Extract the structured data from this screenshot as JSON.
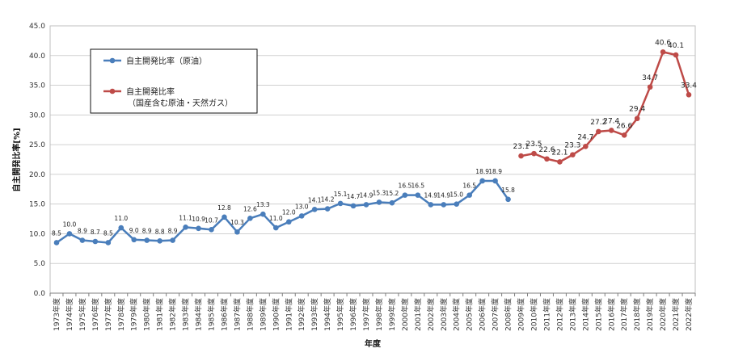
{
  "chart_data": {
    "type": "line",
    "xlabel": "年度",
    "ylabel": "自主開発比率[%]",
    "ylim": [
      0,
      45
    ],
    "yticks": [
      "0.0",
      "5.0",
      "10.0",
      "15.0",
      "20.0",
      "25.0",
      "30.0",
      "35.0",
      "40.0",
      "45.0"
    ],
    "grid": true,
    "legend_position": "top-left",
    "categories": [
      "1973年度",
      "1974年度",
      "1975年度",
      "1976年度",
      "1977年度",
      "1978年度",
      "1979年度",
      "1980年度",
      "1981年度",
      "1982年度",
      "1983年度",
      "1984年度",
      "1985年度",
      "1986年度",
      "1987年度",
      "1988年度",
      "1989年度",
      "1990年度",
      "1991年度",
      "1992年度",
      "1993年度",
      "1994年度",
      "1995年度",
      "1996年度",
      "1997年度",
      "1998年度",
      "1999年度",
      "2000年度",
      "2001年度",
      "2002年度",
      "2003年度",
      "2004年度",
      "2005年度",
      "2006年度",
      "2007年度",
      "2008年度",
      "2009年度",
      "2010年度",
      "2011年度",
      "2012年度",
      "2013年度",
      "2014年度",
      "2015年度",
      "2016年度",
      "2017年度",
      "2018年度",
      "2019年度",
      "2020年度",
      "2021年度",
      "2022年度"
    ],
    "series": [
      {
        "name": "自主開発比率（原油）",
        "color": "#4a7ebb",
        "values": [
          8.5,
          10.0,
          8.9,
          8.7,
          8.5,
          11.0,
          9.0,
          8.9,
          8.8,
          8.9,
          11.1,
          10.9,
          10.7,
          12.8,
          10.3,
          12.6,
          13.3,
          11.0,
          12.0,
          13.0,
          14.1,
          14.2,
          15.1,
          14.7,
          14.9,
          15.3,
          15.2,
          16.5,
          16.5,
          14.9,
          14.9,
          15.0,
          16.5,
          18.9,
          18.9,
          15.8,
          null,
          null,
          null,
          null,
          null,
          null,
          null,
          null,
          null,
          null,
          null,
          null,
          null,
          null
        ],
        "labels": [
          "8.5",
          "10.0",
          "8.9",
          "8.7",
          "8.5",
          "11.0",
          "9.0",
          "8.9",
          "8.8",
          "8.9",
          "11.1",
          "10.9",
          "10.7",
          "12.8",
          "10.3",
          "12.6",
          "13.3",
          "11.0",
          "12.0",
          "13.0",
          "14.1",
          "14.2",
          "15.1",
          "14.7",
          "14.9",
          "15.3",
          "15.2",
          "16.5",
          "16.5",
          "14.9",
          "14.9",
          "15.0",
          "16.5",
          "18.9",
          "18.9",
          "15.8",
          "",
          "",
          "",
          "",
          "",
          "",
          "",
          "",
          "",
          "",
          "",
          "",
          "",
          ""
        ]
      },
      {
        "name": "自主開発比率",
        "name_line2": "（国産含む原油・天然ガス）",
        "color": "#be4b48",
        "values": [
          null,
          null,
          null,
          null,
          null,
          null,
          null,
          null,
          null,
          null,
          null,
          null,
          null,
          null,
          null,
          null,
          null,
          null,
          null,
          null,
          null,
          null,
          null,
          null,
          null,
          null,
          null,
          null,
          null,
          null,
          null,
          null,
          null,
          null,
          null,
          null,
          23.1,
          23.5,
          22.6,
          22.1,
          23.3,
          24.7,
          27.2,
          27.4,
          26.6,
          29.4,
          34.7,
          40.6,
          40.1,
          33.4
        ],
        "labels": [
          "",
          "",
          "",
          "",
          "",
          "",
          "",
          "",
          "",
          "",
          "",
          "",
          "",
          "",
          "",
          "",
          "",
          "",
          "",
          "",
          "",
          "",
          "",
          "",
          "",
          "",
          "",
          "",
          "",
          "",
          "",
          "",
          "",
          "",
          "",
          "",
          "23.1",
          "23.5",
          "22.6",
          "22.1",
          "23.3",
          "24.7",
          "27.2",
          "27.4",
          "26.6",
          "29.4",
          "34.7",
          "40.6",
          "40.1",
          "33.4"
        ]
      }
    ]
  }
}
